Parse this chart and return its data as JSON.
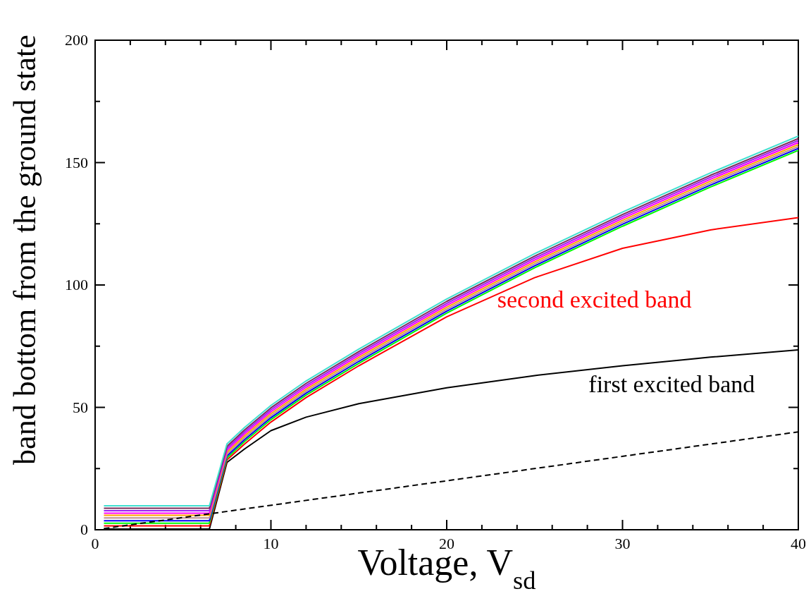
{
  "chart_data": {
    "type": "line",
    "xlabel": "Voltage, V$_{sd}$",
    "ylabel": "band bottom from the ground state",
    "xlim": [
      0,
      40
    ],
    "ylim": [
      0,
      200
    ],
    "xticks": [
      0,
      {
        "value": 2,
        "label": null
      },
      {
        "value": 4,
        "label": null
      },
      {
        "value": 6,
        "label": null
      },
      {
        "value": 8,
        "label": null
      },
      10,
      {
        "value": 12,
        "label": null
      },
      {
        "value": 14,
        "label": null
      },
      {
        "value": 16,
        "label": null
      },
      {
        "value": 18,
        "label": null
      },
      20,
      {
        "value": 22,
        "label": null
      },
      {
        "value": 24,
        "label": null
      },
      {
        "value": 26,
        "label": null
      },
      {
        "value": 28,
        "label": null
      },
      30,
      {
        "value": 32,
        "label": null
      },
      {
        "value": 34,
        "label": null
      },
      {
        "value": 36,
        "label": null
      },
      {
        "value": 38,
        "label": null
      },
      40
    ],
    "yticks": [
      0,
      {
        "value": 25,
        "label": null
      },
      50,
      {
        "value": 75,
        "label": null
      },
      100,
      {
        "value": 125,
        "label": null
      },
      150,
      {
        "value": 175,
        "label": null
      },
      200
    ],
    "marker": "none",
    "line_style": "solid",
    "x": [
      0.5,
      6.5,
      7.5,
      8.5,
      10,
      12,
      15,
      20,
      25,
      30,
      35,
      40
    ],
    "series": [
      {
        "color": "#000000",
        "values": [
          0.3,
          0.3,
          27.5,
          33,
          40.5,
          46,
          51.5,
          58,
          63,
          67,
          70.5,
          73.5
        ]
      },
      {
        "color": "#ff0000",
        "values": [
          1.6,
          1.6,
          28.5,
          35,
          44,
          54,
          67,
          87,
          103,
          115,
          122.5,
          127.5
        ]
      },
      {
        "color": "#00ff00",
        "values": [
          2.7,
          2.7,
          29.3,
          36,
          45,
          55,
          68,
          88.5,
          107,
          124,
          140,
          155
        ]
      },
      {
        "color": "#0000ff",
        "values": [
          3.7,
          3.7,
          30.1,
          36.8,
          45.8,
          55.8,
          68.8,
          89.3,
          107.8,
          124.8,
          140.8,
          155.8
        ]
      },
      {
        "color": "#bc8f8f",
        "values": [
          4.8,
          4.8,
          30.9,
          37.6,
          46.6,
          56.6,
          69.6,
          90.1,
          108.6,
          125.6,
          141.6,
          156.6
        ]
      },
      {
        "color": "#ffa500",
        "values": [
          5.9,
          5.9,
          31.7,
          38.4,
          47.4,
          57.4,
          70.4,
          90.9,
          109.4,
          126.4,
          142.4,
          157.4
        ]
      },
      {
        "color": "#ff00ff",
        "values": [
          6.8,
          6.8,
          32.5,
          39.2,
          48.2,
          58.2,
          71.2,
          91.7,
          110.2,
          127.2,
          143.2,
          158.2
        ]
      },
      {
        "color": "#a020f0",
        "values": [
          7.8,
          7.8,
          33.3,
          40,
          49,
          59,
          72,
          92.5,
          111,
          128,
          144,
          159
        ]
      },
      {
        "color": "#7a2c5a",
        "values": [
          8.8,
          8.8,
          34.1,
          40.8,
          49.8,
          59.8,
          72.8,
          93.3,
          111.8,
          128.8,
          144.8,
          159.8
        ]
      },
      {
        "color": "#40e0d0",
        "values": [
          9.8,
          9.8,
          35.1,
          41.8,
          50.8,
          60.8,
          73.8,
          94.3,
          112.8,
          129.8,
          145.8,
          160.8
        ]
      },
      {
        "color": "#000000",
        "line_style": "dashed",
        "x": [
          0.5,
          40
        ],
        "values": [
          0.5,
          40
        ]
      }
    ],
    "annotations": [
      "second excited band",
      "first excited band"
    ]
  }
}
